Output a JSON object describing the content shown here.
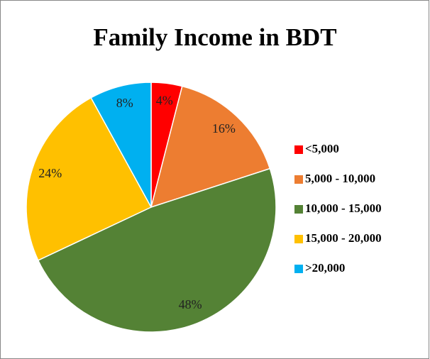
{
  "chart_data": {
    "type": "pie",
    "title": "Family Income in BDT",
    "categories": [
      "<5,000",
      "5,000 - 10,000",
      "10,000 - 15,000",
      "15,000 - 20,000",
      ">20,000"
    ],
    "values": [
      4,
      16,
      48,
      24,
      8
    ],
    "value_labels": [
      "4%",
      "16%",
      "48%",
      "24%",
      "8%"
    ],
    "colors": [
      "#ff0000",
      "#ed7d31",
      "#548235",
      "#ffc000",
      "#00b0f0"
    ],
    "legend": "right"
  }
}
